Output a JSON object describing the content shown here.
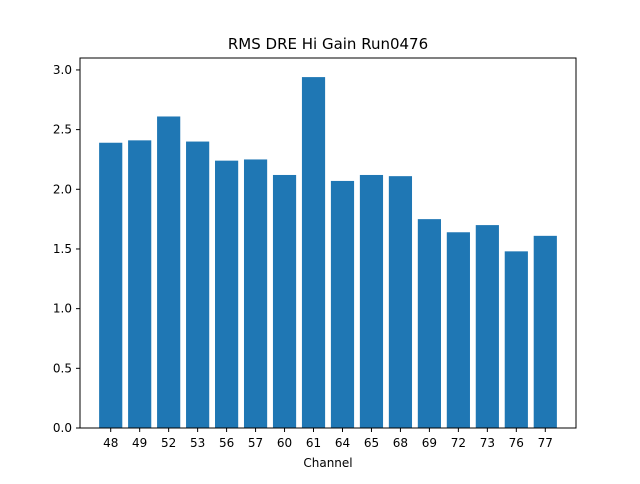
{
  "chart_data": {
    "type": "bar",
    "title": "RMS DRE Hi Gain Run0476",
    "xlabel": "Channel",
    "ylabel": "",
    "categories": [
      "48",
      "49",
      "52",
      "53",
      "56",
      "57",
      "60",
      "61",
      "64",
      "65",
      "68",
      "69",
      "72",
      "73",
      "76",
      "77"
    ],
    "values": [
      2.39,
      2.41,
      2.61,
      2.4,
      2.24,
      2.25,
      2.12,
      2.94,
      2.07,
      2.12,
      2.11,
      1.75,
      1.64,
      1.7,
      1.48,
      1.61
    ],
    "ylim": [
      0,
      3.1
    ],
    "yticks": [
      "0.0",
      "0.5",
      "1.0",
      "1.5",
      "2.0",
      "2.5",
      "3.0"
    ],
    "grid": false,
    "colors": {
      "bar": "#1f77b4",
      "axes": "#000000",
      "background": "#ffffff"
    }
  }
}
